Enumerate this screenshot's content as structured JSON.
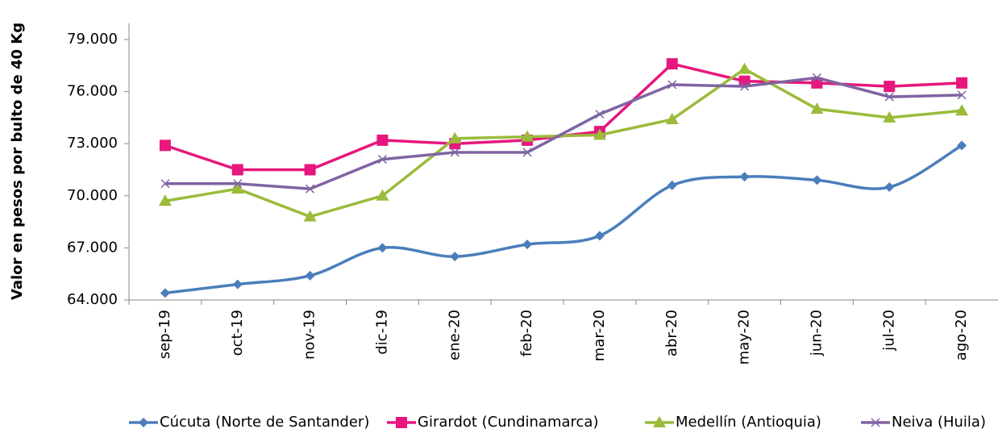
{
  "chart_data": {
    "type": "line",
    "y_label": "Valor en pesos por bulto de 40 Kg",
    "categories": [
      "sep-19",
      "oct-19",
      "nov-19",
      "dic-19",
      "ene-20",
      "feb-20",
      "mar-20",
      "abr-20",
      "may-20",
      "jun-20",
      "jul-20",
      "ago-20"
    ],
    "series": [
      {
        "name": "Cúcuta (Norte de Santander)",
        "color": "#4a7ebb",
        "marker": "diamond",
        "smooth": true,
        "values": [
          64400,
          64900,
          65400,
          67000,
          66500,
          67200,
          67700,
          70600,
          71100,
          70900,
          70500,
          72900
        ]
      },
      {
        "name": "Girardot (Cundinamarca)",
        "color": "#e6177d",
        "marker": "square",
        "smooth": false,
        "values": [
          72900,
          71500,
          71500,
          73200,
          73000,
          73200,
          73700,
          77600,
          76600,
          76500,
          76300,
          76500
        ]
      },
      {
        "name": "Medellín (Antioquia)",
        "color": "#9bbb3b",
        "marker": "triangle",
        "smooth": false,
        "values": [
          69700,
          70400,
          68800,
          70000,
          73300,
          73400,
          73500,
          74400,
          77300,
          75000,
          74500,
          74900
        ]
      },
      {
        "name": "Neiva (Huila)",
        "color": "#8064a2",
        "marker": "x",
        "smooth": false,
        "values": [
          70700,
          70700,
          70400,
          72100,
          72500,
          72500,
          74700,
          76400,
          76300,
          76800,
          75700,
          75800
        ]
      }
    ],
    "ylim": [
      64000,
      79000
    ],
    "yticks": [
      {
        "value": 64000,
        "label": "64.000"
      },
      {
        "value": 67000,
        "label": "67.000"
      },
      {
        "value": 70000,
        "label": "70.000"
      },
      {
        "value": 73000,
        "label": "73.000"
      },
      {
        "value": 76000,
        "label": "76.000"
      },
      {
        "value": 79000,
        "label": "79.000"
      }
    ],
    "legend": "bottom"
  }
}
